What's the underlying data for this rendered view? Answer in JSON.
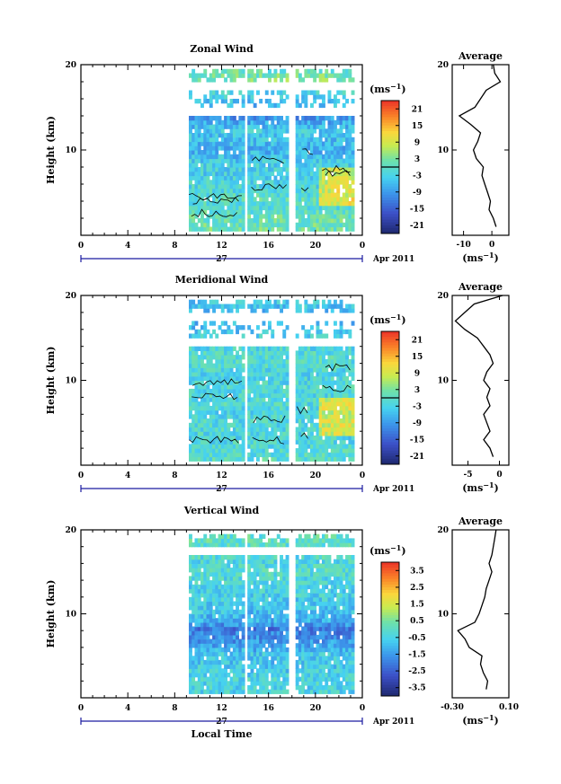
{
  "chart_data": [
    {
      "type": "heatmap",
      "title": "Zonal Wind",
      "ylabel": "Height (km)",
      "ylim": [
        0,
        20
      ],
      "xlim": [
        0,
        24
      ],
      "x_ticks": [
        "0",
        "4",
        "8",
        "12",
        "16",
        "20",
        "0"
      ],
      "y_ticks": [
        "20",
        "10"
      ],
      "day_label": "27",
      "month_label": "Apr 2011",
      "colorbar": {
        "unit": "(ms-1)",
        "unit_text": "(ms",
        "unit_sup": "−1",
        "unit_close": ")",
        "ticks": [
          "21",
          "15",
          "9",
          "3",
          "-3",
          "-9",
          "-15",
          "-21"
        ],
        "range": [
          -24,
          24
        ],
        "zero_line": 0
      },
      "data_blocks": [
        [
          9.2,
          13.9
        ],
        [
          14.2,
          17.7
        ],
        [
          18.3,
          20.1
        ],
        [
          20.3,
          23.2
        ]
      ],
      "profile": {
        "title": "Average",
        "xlim": [
          -14,
          6
        ],
        "x_ticks": [
          "-10",
          "0"
        ],
        "x_tick_values": [
          -10,
          0
        ],
        "xlabel": "(ms",
        "xlabel_sup": "−1",
        "xlabel_close": ")",
        "y_ticks": [
          "20",
          "10"
        ],
        "heights": [
          1,
          2,
          3,
          4,
          5,
          6,
          7,
          8,
          9,
          10,
          11,
          12,
          13,
          14,
          15,
          16,
          17,
          18,
          19,
          20
        ],
        "values": [
          1.5,
          0.5,
          -1.0,
          -0.5,
          -1.5,
          -2.5,
          -3.5,
          -3.0,
          -5.5,
          -6.5,
          -5.0,
          -4.0,
          -7.5,
          -11.5,
          -6.0,
          -4.0,
          -2.0,
          3.0,
          1.0,
          0.5
        ]
      }
    },
    {
      "type": "heatmap",
      "title": "Meridional Wind",
      "ylabel": "Height (km)",
      "ylim": [
        0,
        20
      ],
      "xlim": [
        0,
        24
      ],
      "x_ticks": [
        "0",
        "4",
        "8",
        "12",
        "16",
        "20",
        "0"
      ],
      "y_ticks": [
        "20",
        "10"
      ],
      "day_label": "27",
      "month_label": "Apr 2011",
      "colorbar": {
        "unit": "(ms-1)",
        "unit_text": "(ms",
        "unit_sup": "−1",
        "unit_close": ")",
        "ticks": [
          "21",
          "15",
          "9",
          "3",
          "-3",
          "-9",
          "-15",
          "-21"
        ],
        "range": [
          -24,
          24
        ],
        "zero_line": 0
      },
      "data_blocks": [
        [
          9.2,
          13.9
        ],
        [
          14.2,
          17.7
        ],
        [
          18.3,
          20.1
        ],
        [
          20.3,
          23.2
        ]
      ],
      "profile": {
        "title": "Average",
        "xlim": [
          -7.5,
          1.5
        ],
        "x_ticks": [
          "-5",
          "0"
        ],
        "x_tick_values": [
          -5,
          0
        ],
        "xlabel": "(ms",
        "xlabel_sup": "−1",
        "xlabel_close": ")",
        "y_ticks": [
          "20",
          "10"
        ],
        "heights": [
          1,
          2,
          3,
          4,
          5,
          6,
          7,
          8,
          9,
          10,
          11,
          12,
          13,
          14,
          15,
          16,
          17,
          18,
          19,
          20
        ],
        "values": [
          -1.0,
          -1.5,
          -2.5,
          -1.5,
          -2.0,
          -2.5,
          -1.5,
          -2.0,
          -1.5,
          -2.5,
          -2.0,
          -1.0,
          -1.5,
          -2.5,
          -3.5,
          -5.5,
          -7.0,
          -5.5,
          -4.0,
          0.5
        ]
      }
    },
    {
      "type": "heatmap",
      "title": "Vertical Wind",
      "ylabel": "Height (km)",
      "xlabel": "Local Time",
      "ylim": [
        0,
        20
      ],
      "xlim": [
        0,
        24
      ],
      "x_ticks": [
        "0",
        "4",
        "8",
        "12",
        "16",
        "20",
        "0"
      ],
      "y_ticks": [
        "20",
        "10"
      ],
      "day_label": "27",
      "month_label": "Apr 2011",
      "colorbar": {
        "unit": "(ms-1)",
        "unit_text": "(ms",
        "unit_sup": "−1",
        "unit_close": ")",
        "ticks": [
          "3.5",
          "2.5",
          "1.5",
          "0.5",
          "-0.5",
          "-1.5",
          "-2.5",
          "-3.5"
        ],
        "range": [
          -4,
          4
        ]
      },
      "data_blocks": [
        [
          9.2,
          13.9
        ],
        [
          14.2,
          17.7
        ],
        [
          18.3,
          20.1
        ],
        [
          20.3,
          23.2
        ]
      ],
      "profile": {
        "title": "Average",
        "xlim": [
          -0.3,
          0.1
        ],
        "x_ticks": [
          "-0.30",
          "0.10"
        ],
        "x_tick_values": [
          -0.3,
          0.1
        ],
        "xlabel": "(ms",
        "xlabel_sup": "−1",
        "xlabel_close": ")",
        "y_ticks": [
          "20",
          "10"
        ],
        "heights": [
          1,
          2,
          3,
          4,
          5,
          6,
          7,
          8,
          9,
          10,
          11,
          12,
          13,
          14,
          15,
          16,
          17,
          18,
          19,
          20
        ],
        "values": [
          -0.06,
          -0.05,
          -0.08,
          -0.1,
          -0.09,
          -0.18,
          -0.21,
          -0.26,
          -0.14,
          -0.11,
          -0.09,
          -0.07,
          -0.06,
          -0.04,
          -0.02,
          -0.04,
          -0.02,
          -0.01,
          0.0,
          0.01
        ]
      }
    }
  ]
}
